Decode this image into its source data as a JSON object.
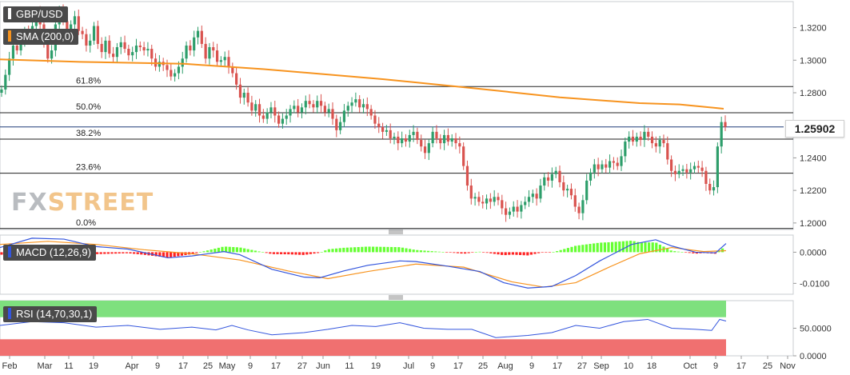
{
  "instrument": "GBP/USD",
  "indicators": {
    "sma_label": "SMA (200,0)",
    "macd_label": "MACD (12,26,9)",
    "rsi_label": "RSI (14,70,30,1)"
  },
  "current_price": "1.25902",
  "watermark": {
    "part1": "FX",
    "part2": "STREET"
  },
  "colors": {
    "up": "#2e9e6b",
    "down": "#d9534f",
    "sma": "#f7931e",
    "macd_line": "#3355dd",
    "signal_line": "#f7931e",
    "hist_pos": "#66ff33",
    "hist_neg": "#ff2222",
    "rsi_line": "#3355dd",
    "rsi_overbought": "#7ee07e",
    "rsi_oversold": "#f07070"
  },
  "chart_data": [
    {
      "type": "candlestick",
      "title": "GBP/USD",
      "ylim": [
        1.196,
        1.336
      ],
      "y_ticks": [
        "1.3200",
        "1.3000",
        "1.2800",
        "1.2400",
        "1.2200",
        "1.2000"
      ],
      "fibonacci": [
        {
          "label": "61.8%",
          "value": 1.2838
        },
        {
          "label": "50.0%",
          "value": 1.2677
        },
        {
          "label": "38.2%",
          "value": 1.2515
        },
        {
          "label": "23.6%",
          "value": 1.2306
        },
        {
          "label": "0.0%",
          "value": 1.1966
        }
      ],
      "last_price": 1.25902,
      "closes": [
        1.282,
        1.291,
        1.301,
        1.309,
        1.306,
        1.312,
        1.318,
        1.316,
        1.321,
        1.33,
        1.322,
        1.312,
        1.301,
        1.306,
        1.322,
        1.331,
        1.324,
        1.317,
        1.322,
        1.327,
        1.318,
        1.316,
        1.309,
        1.312,
        1.321,
        1.31,
        1.305,
        1.312,
        1.304,
        1.302,
        1.308,
        1.311,
        1.307,
        1.303,
        1.305,
        1.309,
        1.308,
        1.306,
        1.307,
        1.301,
        1.296,
        1.299,
        1.297,
        1.294,
        1.29,
        1.292,
        1.296,
        1.301,
        1.309,
        1.306,
        1.314,
        1.318,
        1.31,
        1.301,
        1.308,
        1.306,
        1.299,
        1.3,
        1.302,
        1.296,
        1.292,
        1.285,
        1.277,
        1.28,
        1.274,
        1.269,
        1.273,
        1.266,
        1.264,
        1.268,
        1.271,
        1.266,
        1.261,
        1.264,
        1.266,
        1.27,
        1.272,
        1.268,
        1.271,
        1.275,
        1.273,
        1.271,
        1.275,
        1.272,
        1.268,
        1.27,
        1.264,
        1.257,
        1.262,
        1.269,
        1.272,
        1.274,
        1.276,
        1.271,
        1.273,
        1.27,
        1.266,
        1.261,
        1.259,
        1.256,
        1.257,
        1.252,
        1.253,
        1.249,
        1.252,
        1.25,
        1.254,
        1.256,
        1.251,
        1.247,
        1.243,
        1.249,
        1.256,
        1.252,
        1.249,
        1.254,
        1.25,
        1.252,
        1.249,
        1.247,
        1.235,
        1.223,
        1.215,
        1.216,
        1.213,
        1.212,
        1.215,
        1.213,
        1.216,
        1.214,
        1.209,
        1.205,
        1.207,
        1.21,
        1.207,
        1.211,
        1.213,
        1.216,
        1.218,
        1.215,
        1.223,
        1.228,
        1.226,
        1.23,
        1.232,
        1.225,
        1.22,
        1.221,
        1.217,
        1.21,
        1.206,
        1.214,
        1.226,
        1.231,
        1.236,
        1.233,
        1.236,
        1.234,
        1.238,
        1.237,
        1.235,
        1.241,
        1.25,
        1.253,
        1.25,
        1.253,
        1.251,
        1.256,
        1.253,
        1.249,
        1.247,
        1.251,
        1.249,
        1.239,
        1.232,
        1.23,
        1.232,
        1.233,
        1.231,
        1.233,
        1.235,
        1.234,
        1.232,
        1.224,
        1.22,
        1.222,
        1.247,
        1.262,
        1.259
      ],
      "sma200_points": [
        [
          0,
          1.3005
        ],
        [
          100,
          1.299
        ],
        [
          230,
          1.2978
        ],
        [
          330,
          1.2945
        ],
        [
          480,
          1.2883
        ],
        [
          600,
          1.2824
        ],
        [
          700,
          1.2772
        ],
        [
          800,
          1.2736
        ],
        [
          850,
          1.2728
        ],
        [
          905,
          1.2702
        ]
      ],
      "x_labels": [
        "Feb",
        "Mar",
        "11",
        "19",
        "Apr",
        "9",
        "17",
        "25",
        "May",
        "9",
        "17",
        "27",
        "Jun",
        "11",
        "19",
        "Jul",
        "9",
        "17",
        "25",
        "Aug",
        "9",
        "17",
        "27",
        "Sep",
        "10",
        "18",
        "Oct",
        "9",
        "17",
        "25",
        "Nov"
      ]
    },
    {
      "type": "line",
      "title": "MACD (12,26,9)",
      "ylim": [
        -0.0135,
        0.0055
      ],
      "y_ticks": [
        "0.0000",
        "-0.0100"
      ],
      "macd_points": [
        [
          0,
          0.0015
        ],
        [
          40,
          0.0045
        ],
        [
          80,
          0.0042
        ],
        [
          120,
          0.0018
        ],
        [
          160,
          0.001
        ],
        [
          210,
          -0.0018
        ],
        [
          240,
          -0.0012
        ],
        [
          280,
          0.0002
        ],
        [
          300,
          -0.0008
        ],
        [
          340,
          -0.0055
        ],
        [
          380,
          -0.008
        ],
        [
          400,
          -0.0082
        ],
        [
          430,
          -0.006
        ],
        [
          460,
          -0.0042
        ],
        [
          500,
          -0.0028
        ],
        [
          520,
          -0.003
        ],
        [
          560,
          -0.0045
        ],
        [
          600,
          -0.0062
        ],
        [
          630,
          -0.0098
        ],
        [
          660,
          -0.0115
        ],
        [
          690,
          -0.011
        ],
        [
          720,
          -0.0075
        ],
        [
          750,
          -0.0028
        ],
        [
          790,
          0.0025
        ],
        [
          820,
          0.004
        ],
        [
          840,
          0.002
        ],
        [
          870,
          0.0
        ],
        [
          895,
          -0.0002
        ],
        [
          908,
          0.0028
        ]
      ],
      "signal_points": [
        [
          0,
          0.0025
        ],
        [
          60,
          0.0035
        ],
        [
          120,
          0.0025
        ],
        [
          180,
          0.0008
        ],
        [
          240,
          -0.0005
        ],
        [
          300,
          -0.0025
        ],
        [
          360,
          -0.006
        ],
        [
          410,
          -0.0085
        ],
        [
          460,
          -0.0062
        ],
        [
          520,
          -0.0038
        ],
        [
          580,
          -0.0048
        ],
        [
          640,
          -0.0095
        ],
        [
          680,
          -0.0112
        ],
        [
          720,
          -0.0098
        ],
        [
          760,
          -0.005
        ],
        [
          800,
          -0.0005
        ],
        [
          840,
          0.0015
        ],
        [
          880,
          0.0002
        ],
        [
          908,
          0.0005
        ]
      ]
    },
    {
      "type": "line",
      "title": "RSI (14,70,30,1)",
      "ylim": [
        0,
        100
      ],
      "y_ticks": [
        "50.0000",
        "0.0000"
      ],
      "points": [
        [
          0,
          55
        ],
        [
          40,
          62
        ],
        [
          80,
          60
        ],
        [
          120,
          52
        ],
        [
          160,
          55
        ],
        [
          200,
          48
        ],
        [
          240,
          52
        ],
        [
          270,
          47
        ],
        [
          290,
          55
        ],
        [
          310,
          47
        ],
        [
          340,
          38
        ],
        [
          380,
          42
        ],
        [
          410,
          48
        ],
        [
          440,
          55
        ],
        [
          470,
          53
        ],
        [
          500,
          60
        ],
        [
          530,
          50
        ],
        [
          560,
          48
        ],
        [
          590,
          48
        ],
        [
          620,
          33
        ],
        [
          660,
          37
        ],
        [
          690,
          42
        ],
        [
          720,
          55
        ],
        [
          750,
          50
        ],
        [
          780,
          62
        ],
        [
          810,
          66
        ],
        [
          840,
          50
        ],
        [
          870,
          48
        ],
        [
          890,
          46
        ],
        [
          900,
          66
        ],
        [
          908,
          63
        ]
      ]
    }
  ]
}
